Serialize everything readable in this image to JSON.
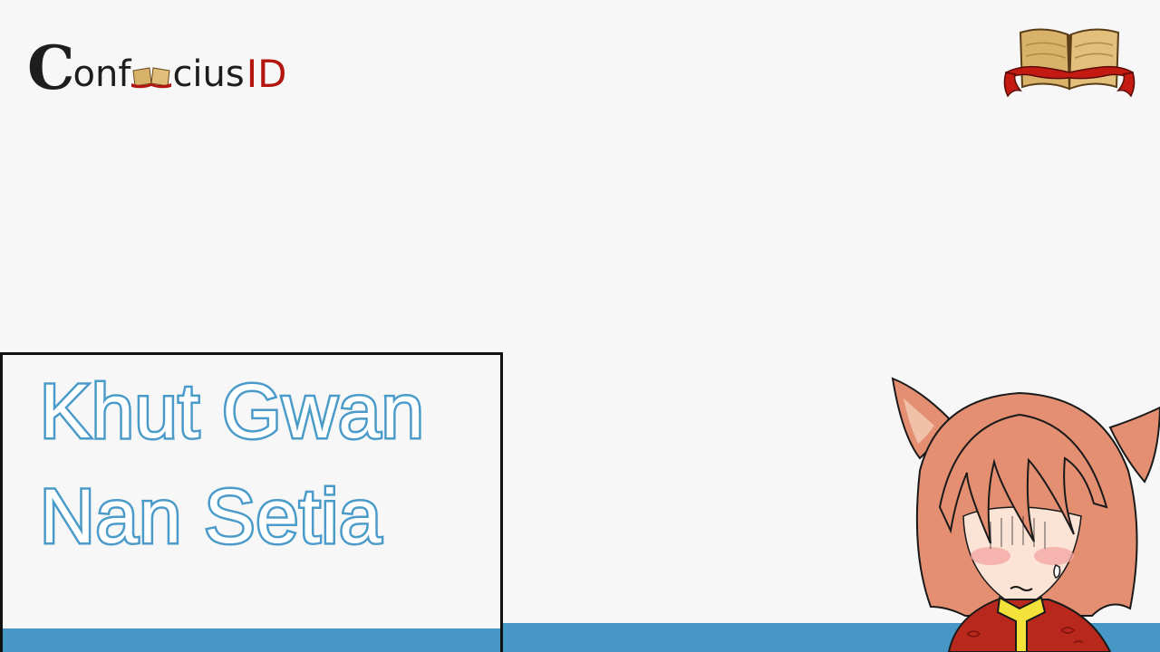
{
  "logo": {
    "part_c": "C",
    "part_onf": "onf",
    "part_cius": "cius",
    "part_id": "ID"
  },
  "title": {
    "line1": "Khut Gwan",
    "line2": "Nan Setia"
  },
  "colors": {
    "background": "#f7f7f7",
    "band": "#4797c6",
    "title_stroke": "#4a9bc9",
    "logo_red": "#b3160f",
    "hair": "#e48f72",
    "robe": "#b8281c",
    "collar": "#f2e23a"
  },
  "icons": {
    "logo_book": "open-book-icon",
    "emblem": "open-book-emblem-icon"
  }
}
